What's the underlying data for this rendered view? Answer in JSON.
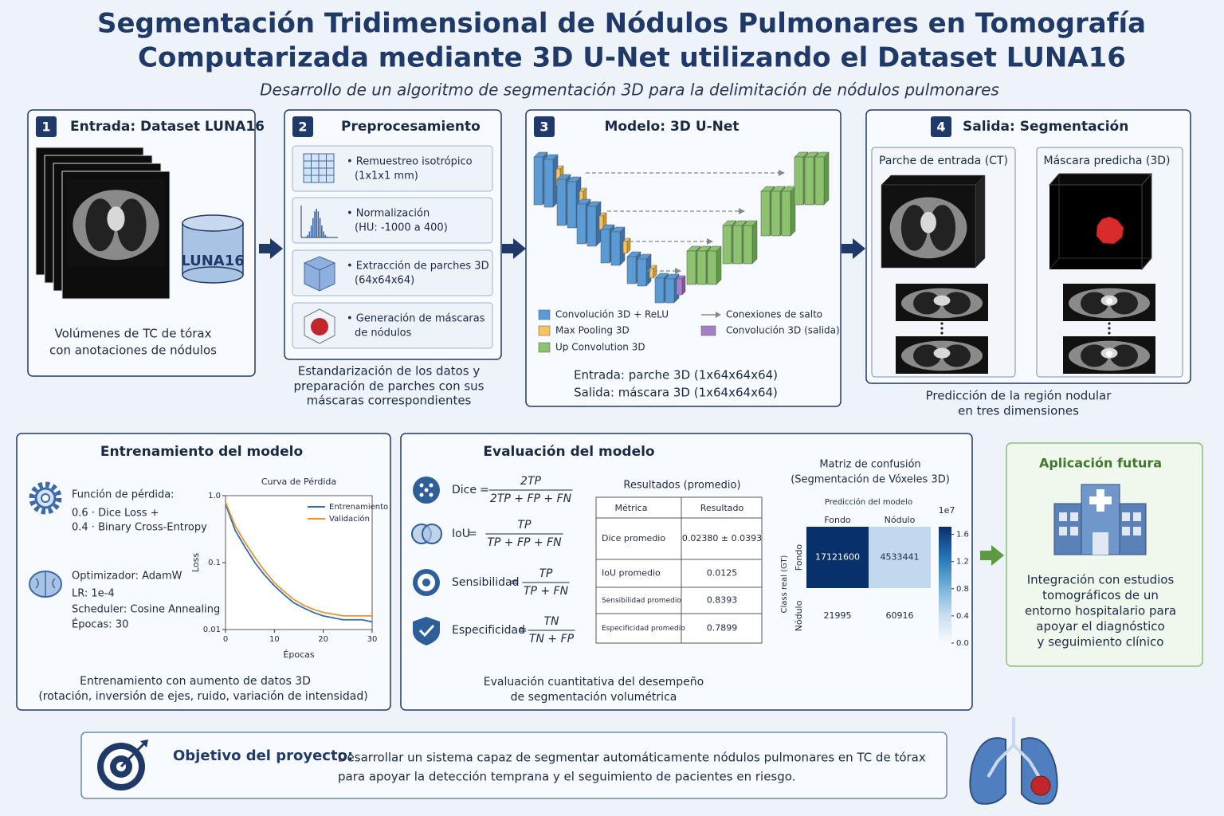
{
  "header": {
    "title": [
      "Segmentación Tridimensional de Nódulos Pulmonares en Tomografía",
      "Computarizada mediante 3D U-Net utilizando el Dataset  LUNA16"
    ],
    "subtitle": "Desarrollo de un algoritmo de segmentación 3D para la delimitación de nódulos pulmonares"
  },
  "steps": [
    {
      "number": "1",
      "title": "Entrada: Dataset LUNA16",
      "db_label": "LUNA16",
      "caption": [
        "Volúmenes de TC de tórax",
        "con anotaciones de nódulos"
      ]
    },
    {
      "number": "2",
      "title": "Preprocesamiento",
      "items": [
        [
          "• Remuestreo isotrópico",
          "(1x1x1 mm)"
        ],
        [
          "• Normalización",
          "(HU: -1000 a 400)"
        ],
        [
          "• Extracción de parches 3D",
          "(64x64x64)"
        ],
        [
          "• Generación de máscaras",
          "de nódulos"
        ]
      ],
      "caption": [
        "Estandarización de los datos y",
        "preparación de parches con sus",
        "máscaras correspondientes"
      ]
    },
    {
      "number": "3",
      "title": "Modelo: 3D U-Net",
      "legend": [
        "Convolución 3D + ReLU",
        "Max Pooling 3D",
        "Up Convolution 3D",
        "Conexiones de salto",
        "Convolución 3D (salida)"
      ],
      "io": [
        "Entrada: parche 3D (1x64x64x64)",
        "Salida: máscara 3D (1x64x64x64)"
      ]
    },
    {
      "number": "4",
      "title": "Salida: Segmentación",
      "panels": [
        "Parche de entrada (CT)",
        "Máscara predicha (3D)"
      ],
      "caption": [
        "Predicción de la región nodular",
        "en tres dimensiones"
      ]
    }
  ],
  "training": {
    "title": "Entrenamiento del modelo",
    "loss_heading": "Función de pérdida:",
    "loss_lines": [
      "0.6 · Dice Loss +",
      "0.4 · Binary Cross-Entropy"
    ],
    "optimizer_lines": [
      "Optimizador: AdamW",
      "LR: 1e-4",
      "Scheduler: Cosine Annealing",
      "Épocas: 30"
    ],
    "caption": [
      "Entrenamiento con aumento de datos 3D",
      "(rotación, inversión de ejes, ruido, variación de intensidad)"
    ]
  },
  "evaluation": {
    "title": "Evaluación del modelo",
    "equals": "=",
    "formulas": [
      {
        "name": "Dice",
        "numerator": "2TP",
        "denominator": "2TP + FP + FN"
      },
      {
        "name": "IoU",
        "numerator": "TP",
        "denominator": "TP + FP + FN"
      },
      {
        "name": "Sensibilidad",
        "numerator": "TP",
        "denominator": "TP + FN"
      },
      {
        "name": "Especificidad",
        "numerator": "TN",
        "denominator": "TN + FP"
      }
    ],
    "results": {
      "title": "Resultados (promedio)",
      "header": [
        "Métrica",
        "Resultado"
      ],
      "rows": [
        [
          "Dice promedio",
          "0.02380 ± 0.0393"
        ],
        [
          "IoU promedio",
          "0.0125"
        ],
        [
          "Sensibilidad promedio",
          "0.8393"
        ],
        [
          "Especificidad promedio",
          "0.7899"
        ]
      ]
    },
    "caption": [
      "Evaluación cuantitativa del desempeño",
      "de segmentación volumétrica"
    ]
  },
  "future": {
    "title": "Aplicación futura",
    "lines": [
      "Integración con estudios",
      "tomográficos de un",
      "entorno hospitalario para",
      "apoyar el diagnóstico",
      "y seguimiento clínico"
    ]
  },
  "objective": {
    "label": "Objetivo del proyecto:",
    "lines": [
      "Desarrollar un sistema capaz de segmentar automáticamente  nódulos pulmonares en TC de tórax",
      "para apoyar la detección temprana y el seguimiento de pacientes en riesgo."
    ]
  },
  "chart_data": [
    {
      "type": "line",
      "title": "Curva de Pérdida",
      "x_label": "Épocas",
      "y_label": "Loss",
      "x": [
        0,
        2,
        4,
        6,
        8,
        10,
        12,
        14,
        16,
        18,
        20,
        22,
        24,
        26,
        28,
        30
      ],
      "series": [
        {
          "name": "Entrenamiento",
          "color": "#2f6db5",
          "values": [
            0.75,
            0.3,
            0.17,
            0.1,
            0.065,
            0.045,
            0.033,
            0.025,
            0.021,
            0.018,
            0.016,
            0.015,
            0.014,
            0.014,
            0.014,
            0.013
          ]
        },
        {
          "name": "Validación",
          "color": "#f0932b",
          "values": [
            0.8,
            0.35,
            0.2,
            0.12,
            0.075,
            0.05,
            0.037,
            0.028,
            0.023,
            0.02,
            0.018,
            0.017,
            0.016,
            0.016,
            0.016,
            0.016
          ]
        }
      ],
      "xlim": [
        0,
        30
      ],
      "xticks": [
        0,
        10,
        20,
        30
      ],
      "ylim": [
        0.01,
        1
      ],
      "yticks": [
        0.01,
        0.1,
        {
          "value": 1,
          "label": "1.0"
        }
      ],
      "log_y": true,
      "legend": "upper right"
    },
    {
      "type": "heatmap",
      "title": [
        "Matriz de confusión",
        "(Segmentación de Vóxeles 3D)"
      ],
      "x_label": "Predicción del modelo",
      "y_label": "Class real (GT)",
      "x_categories": [
        "Fondo",
        "Nódulo"
      ],
      "y_categories": [
        "Fondo",
        "Nódulo"
      ],
      "values": [
        [
          17121600,
          4533441
        ],
        [
          21995,
          60916
        ]
      ],
      "colormap": "Blues",
      "colorbar": {
        "offset_label": "1e7",
        "lim": [
          0,
          17121600
        ],
        "ticks": [
          {
            "value": 0,
            "label": "0.0"
          },
          {
            "value": 4000000,
            "label": "0.4"
          },
          {
            "value": 8000000,
            "label": "0.8"
          },
          {
            "value": 12000000,
            "label": "1.2"
          },
          {
            "value": 16000000,
            "label": "1.6"
          }
        ]
      }
    }
  ]
}
